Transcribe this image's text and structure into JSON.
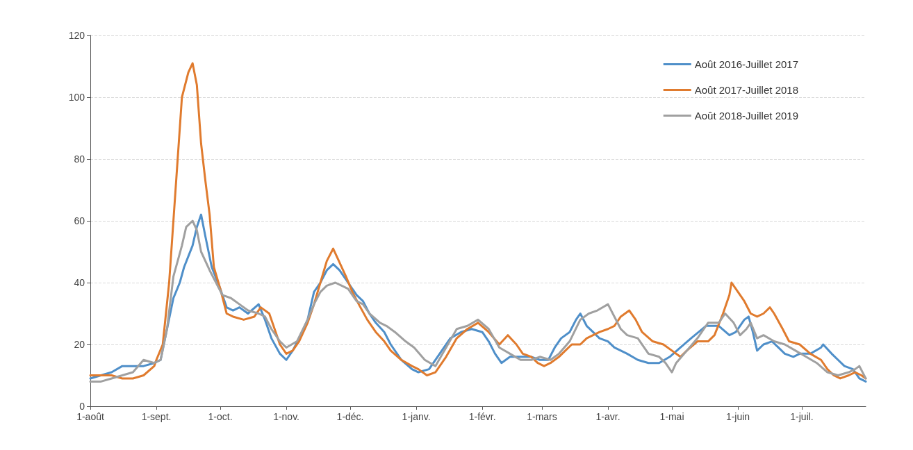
{
  "chart_data": {
    "type": "line",
    "xlim": [
      "2016-08-01",
      "2017-07-31"
    ],
    "ylim": [
      0,
      120
    ],
    "yticks": [
      0,
      20,
      40,
      60,
      80,
      100,
      120
    ],
    "xticks": [
      {
        "value": "2016-08-01",
        "label": "1-août"
      },
      {
        "value": "2016-09-01",
        "label": "1-sept."
      },
      {
        "value": "2016-10-01",
        "label": "1-oct."
      },
      {
        "value": "2016-11-01",
        "label": "1-nov."
      },
      {
        "value": "2016-12-01",
        "label": "1-déc."
      },
      {
        "value": "2017-01-01",
        "label": "1-janv."
      },
      {
        "value": "2017-02-01",
        "label": "1-févr."
      },
      {
        "value": "2017-03-01",
        "label": "1-mars"
      },
      {
        "value": "2017-04-01",
        "label": "1-avr."
      },
      {
        "value": "2017-05-01",
        "label": "1-mai"
      },
      {
        "value": "2017-06-01",
        "label": "1-juin"
      },
      {
        "value": "2017-07-01",
        "label": "1-juil."
      }
    ],
    "grid": "y",
    "legend": "top right",
    "marker": "none",
    "line_style": "solid",
    "series": [
      {
        "name": "Août 2016-Juillet 2017",
        "color": "#4f8fc9",
        "x": [
          "2016-08-01",
          "2016-08-06",
          "2016-08-11",
          "2016-08-16",
          "2016-08-21",
          "2016-08-26",
          "2016-08-31",
          "2016-09-03",
          "2016-09-06",
          "2016-09-09",
          "2016-09-12",
          "2016-09-14",
          "2016-09-18",
          "2016-09-20",
          "2016-09-22",
          "2016-09-24",
          "2016-09-27",
          "2016-10-01",
          "2016-10-04",
          "2016-10-07",
          "2016-10-10",
          "2016-10-14",
          "2016-10-19",
          "2016-10-22",
          "2016-10-25",
          "2016-10-29",
          "2016-11-01",
          "2016-11-04",
          "2016-11-07",
          "2016-11-11",
          "2016-11-14",
          "2016-11-17",
          "2016-11-20",
          "2016-11-23",
          "2016-11-26",
          "2016-11-30",
          "2016-12-04",
          "2016-12-07",
          "2016-12-10",
          "2016-12-13",
          "2016-12-17",
          "2016-12-20",
          "2016-12-25",
          "2016-12-30",
          "2017-01-02",
          "2017-01-07",
          "2017-01-12",
          "2017-01-17",
          "2017-01-22",
          "2017-01-27",
          "2017-02-01",
          "2017-02-04",
          "2017-02-07",
          "2017-02-10",
          "2017-02-14",
          "2017-02-19",
          "2017-02-24",
          "2017-02-28",
          "2017-03-04",
          "2017-03-07",
          "2017-03-10",
          "2017-03-14",
          "2017-03-17",
          "2017-03-19",
          "2017-03-22",
          "2017-03-25",
          "2017-03-28",
          "2017-04-01",
          "2017-04-04",
          "2017-04-07",
          "2017-04-10",
          "2017-04-15",
          "2017-04-20",
          "2017-04-25",
          "2017-04-30",
          "2017-05-05",
          "2017-05-10",
          "2017-05-17",
          "2017-05-23",
          "2017-05-28",
          "2017-05-31",
          "2017-06-04",
          "2017-06-06",
          "2017-06-08",
          "2017-06-10",
          "2017-06-13",
          "2017-06-17",
          "2017-06-20",
          "2017-06-23",
          "2017-06-27",
          "2017-06-30",
          "2017-07-05",
          "2017-07-10",
          "2017-07-11",
          "2017-07-15",
          "2017-07-18",
          "2017-07-21",
          "2017-07-25",
          "2017-07-28",
          "2017-07-31"
        ],
        "values": [
          9,
          10,
          11,
          13,
          13,
          13,
          14,
          15,
          25,
          35,
          40,
          45,
          52,
          58,
          62,
          55,
          45,
          38,
          32,
          31,
          32,
          30,
          33,
          28,
          22,
          17,
          15,
          18,
          22,
          28,
          37,
          40,
          44,
          46,
          44,
          40,
          36,
          34,
          30,
          27,
          24,
          20,
          15,
          12,
          11,
          12,
          17,
          22,
          24,
          25,
          24,
          21,
          17,
          14,
          16,
          16,
          16,
          15,
          15,
          19,
          22,
          24,
          28,
          30,
          26,
          24,
          22,
          21,
          19,
          18,
          17,
          15,
          14,
          14,
          16,
          19,
          22,
          26,
          26,
          23,
          24,
          28,
          29,
          24,
          18,
          20,
          21,
          19,
          17,
          16,
          17,
          17,
          19,
          20,
          17,
          15,
          13,
          12,
          9,
          8
        ]
      },
      {
        "name": "Août 2017-Juillet 2018",
        "color": "#e07b2e",
        "x": [
          "2016-08-01",
          "2016-08-06",
          "2016-08-11",
          "2016-08-16",
          "2016-08-21",
          "2016-08-26",
          "2016-08-31",
          "2016-09-01",
          "2016-09-04",
          "2016-09-07",
          "2016-09-10",
          "2016-09-13",
          "2016-09-16",
          "2016-09-18",
          "2016-09-20",
          "2016-09-22",
          "2016-09-24",
          "2016-09-26",
          "2016-09-28",
          "2016-10-01",
          "2016-10-04",
          "2016-10-07",
          "2016-10-12",
          "2016-10-17",
          "2016-10-20",
          "2016-10-24",
          "2016-10-26",
          "2016-10-29",
          "2016-11-01",
          "2016-11-04",
          "2016-11-07",
          "2016-11-11",
          "2016-11-14",
          "2016-11-17",
          "2016-11-20",
          "2016-11-23",
          "2016-11-25",
          "2016-11-29",
          "2016-12-02",
          "2016-12-05",
          "2016-12-09",
          "2016-12-13",
          "2016-12-17",
          "2016-12-20",
          "2016-12-25",
          "2016-12-30",
          "2017-01-02",
          "2017-01-06",
          "2017-01-10",
          "2017-01-15",
          "2017-01-20",
          "2017-01-25",
          "2017-01-30",
          "2017-02-04",
          "2017-02-09",
          "2017-02-13",
          "2017-02-17",
          "2017-02-20",
          "2017-02-24",
          "2017-02-27",
          "2017-03-02",
          "2017-03-05",
          "2017-03-09",
          "2017-03-12",
          "2017-03-15",
          "2017-03-19",
          "2017-03-22",
          "2017-03-25",
          "2017-03-28",
          "2017-04-01",
          "2017-04-04",
          "2017-04-07",
          "2017-04-11",
          "2017-04-14",
          "2017-04-17",
          "2017-04-22",
          "2017-04-27",
          "2017-05-01",
          "2017-05-05",
          "2017-05-08",
          "2017-05-13",
          "2017-05-18",
          "2017-05-21",
          "2017-05-25",
          "2017-05-28",
          "2017-05-29",
          "2017-05-31",
          "2017-06-04",
          "2017-06-07",
          "2017-06-10",
          "2017-06-13",
          "2017-06-16",
          "2017-06-18",
          "2017-06-22",
          "2017-06-25",
          "2017-06-30",
          "2017-07-05",
          "2017-07-10",
          "2017-07-13",
          "2017-07-16",
          "2017-07-19",
          "2017-07-23",
          "2017-07-26",
          "2017-07-29",
          "2017-07-31"
        ],
        "values": [
          10,
          10,
          10,
          9,
          9,
          10,
          13,
          15,
          20,
          40,
          70,
          100,
          108,
          111,
          104,
          85,
          73,
          62,
          45,
          38,
          30,
          29,
          28,
          29,
          32,
          30,
          26,
          20,
          17,
          18,
          21,
          27,
          33,
          40,
          47,
          51,
          48,
          42,
          37,
          33,
          28,
          24,
          21,
          18,
          15,
          13,
          12,
          10,
          11,
          16,
          22,
          25,
          27,
          24,
          20,
          23,
          20,
          17,
          16,
          14,
          13,
          14,
          16,
          18,
          20,
          20,
          22,
          23,
          24,
          25,
          26,
          29,
          31,
          28,
          24,
          21,
          20,
          18,
          16,
          18,
          21,
          21,
          23,
          30,
          36,
          40,
          38,
          34,
          30,
          29,
          30,
          32,
          30,
          25,
          21,
          20,
          17,
          15,
          12,
          10,
          9,
          10,
          11,
          10,
          9
        ]
      },
      {
        "name": "Août 2018-Juillet 2019",
        "color": "#a0a0a0",
        "x": [
          "2016-08-01",
          "2016-08-06",
          "2016-08-11",
          "2016-08-16",
          "2016-08-21",
          "2016-08-26",
          "2016-08-31",
          "2016-09-03",
          "2016-09-06",
          "2016-09-09",
          "2016-09-13",
          "2016-09-15",
          "2016-09-18",
          "2016-09-20",
          "2016-09-22",
          "2016-09-26",
          "2016-09-29",
          "2016-10-02",
          "2016-10-06",
          "2016-10-10",
          "2016-10-14",
          "2016-10-19",
          "2016-10-22",
          "2016-10-25",
          "2016-10-29",
          "2016-11-01",
          "2016-11-06",
          "2016-11-11",
          "2016-11-14",
          "2016-11-17",
          "2016-11-20",
          "2016-11-24",
          "2016-11-27",
          "2016-11-30",
          "2016-12-04",
          "2016-12-07",
          "2016-12-10",
          "2016-12-15",
          "2016-12-18",
          "2016-12-22",
          "2016-12-27",
          "2016-12-31",
          "2017-01-05",
          "2017-01-10",
          "2017-01-15",
          "2017-01-20",
          "2017-01-25",
          "2017-01-30",
          "2017-02-04",
          "2017-02-09",
          "2017-02-14",
          "2017-02-19",
          "2017-02-24",
          "2017-02-28",
          "2017-03-05",
          "2017-03-09",
          "2017-03-14",
          "2017-03-19",
          "2017-03-23",
          "2017-03-27",
          "2017-04-01",
          "2017-04-04",
          "2017-04-07",
          "2017-04-10",
          "2017-04-15",
          "2017-04-20",
          "2017-04-25",
          "2017-04-28",
          "2017-05-01",
          "2017-05-03",
          "2017-05-08",
          "2017-05-13",
          "2017-05-18",
          "2017-05-23",
          "2017-05-26",
          "2017-05-30",
          "2017-06-02",
          "2017-06-05",
          "2017-06-07",
          "2017-06-10",
          "2017-06-13",
          "2017-06-18",
          "2017-06-23",
          "2017-06-28",
          "2017-07-03",
          "2017-07-08",
          "2017-07-13",
          "2017-07-18",
          "2017-07-23",
          "2017-07-26",
          "2017-07-28",
          "2017-07-31"
        ],
        "values": [
          8,
          8,
          9,
          10,
          11,
          15,
          14,
          15,
          25,
          42,
          52,
          58,
          60,
          57,
          50,
          44,
          40,
          36,
          35,
          33,
          31,
          30,
          29,
          25,
          21,
          19,
          21,
          28,
          33,
          37,
          39,
          40,
          39,
          38,
          34,
          33,
          30,
          27,
          26,
          24,
          21,
          19,
          15,
          13,
          19,
          25,
          26,
          28,
          25,
          19,
          17,
          15,
          15,
          16,
          15,
          17,
          21,
          28,
          30,
          31,
          33,
          29,
          25,
          23,
          22,
          17,
          16,
          14,
          11,
          14,
          18,
          22,
          27,
          27,
          30,
          27,
          23,
          25,
          27,
          22,
          23,
          21,
          20,
          18,
          16,
          14,
          11,
          10,
          11,
          12,
          13,
          9
        ]
      }
    ]
  }
}
